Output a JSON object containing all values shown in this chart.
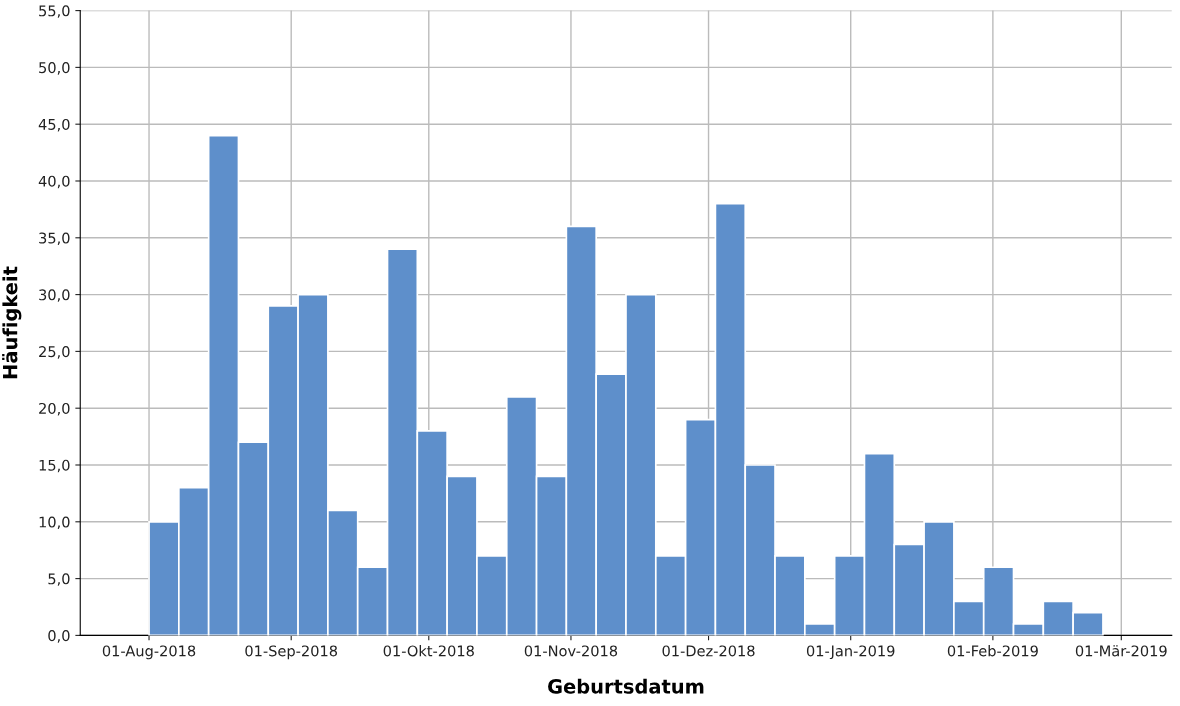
{
  "chart_data": {
    "type": "histogram",
    "xlabel": "Geburtsdatum",
    "ylabel": "Häufigkeit",
    "color": "#5e8fcb",
    "bins": [
      "2018-08-01",
      "2018-08-07T12:00",
      "2018-08-14",
      "2018-08-20T12:00",
      "2018-08-27",
      "2018-09-02T12:00",
      "2018-09-09",
      "2018-09-15T12:00",
      "2018-09-22",
      "2018-09-28T12:00",
      "2018-10-05",
      "2018-10-11T12:00",
      "2018-10-18",
      "2018-10-24T12:00",
      "2018-10-31",
      "2018-11-06T12:00",
      "2018-11-13",
      "2018-11-19T12:00",
      "2018-11-26",
      "2018-12-02T12:00",
      "2018-12-09",
      "2018-12-15T12:00",
      "2018-12-22",
      "2018-12-28T12:00",
      "2019-01-04",
      "2019-01-10T12:00",
      "2019-01-17",
      "2019-01-23T12:00",
      "2019-01-30",
      "2019-02-05T12:00",
      "2019-02-12",
      "2019-02-18T12:00",
      "2019-02-25"
    ],
    "values": [
      10,
      13,
      44,
      17,
      29,
      30,
      11,
      6,
      34,
      18,
      14,
      7,
      21,
      14,
      36,
      23,
      30,
      7,
      19,
      38,
      15,
      7,
      1,
      7,
      16,
      8,
      10,
      3,
      6,
      1,
      3,
      2
    ],
    "xlim": [
      "2018-07-17",
      "2019-03-12"
    ],
    "xticks": [
      {
        "value": "2018-08-01",
        "label": "01-Aug-2018"
      },
      {
        "value": "2018-09-01",
        "label": "01-Sep-2018"
      },
      {
        "value": "2018-10-01",
        "label": "01-Okt-2018"
      },
      {
        "value": "2018-11-01",
        "label": "01-Nov-2018"
      },
      {
        "value": "2018-12-01",
        "label": "01-Dez-2018"
      },
      {
        "value": "2019-01-01",
        "label": "01-Jan-2019"
      },
      {
        "value": "2019-02-01",
        "label": "01-Feb-2019"
      },
      {
        "value": "2019-03-01",
        "label": "01-Mär-2019"
      }
    ],
    "ylim": [
      0,
      55
    ],
    "yticks": [
      {
        "value": 0,
        "label": "0,0"
      },
      {
        "value": 5,
        "label": "5,0"
      },
      {
        "value": 10,
        "label": "10,0"
      },
      {
        "value": 15,
        "label": "15,0"
      },
      {
        "value": 20,
        "label": "20,0"
      },
      {
        "value": 25,
        "label": "25,0"
      },
      {
        "value": 30,
        "label": "30,0"
      },
      {
        "value": 35,
        "label": "35,0"
      },
      {
        "value": 40,
        "label": "40,0"
      },
      {
        "value": 45,
        "label": "45,0"
      },
      {
        "value": 50,
        "label": "50,0"
      },
      {
        "value": 55,
        "label": "55,0"
      }
    ],
    "grid": true
  }
}
